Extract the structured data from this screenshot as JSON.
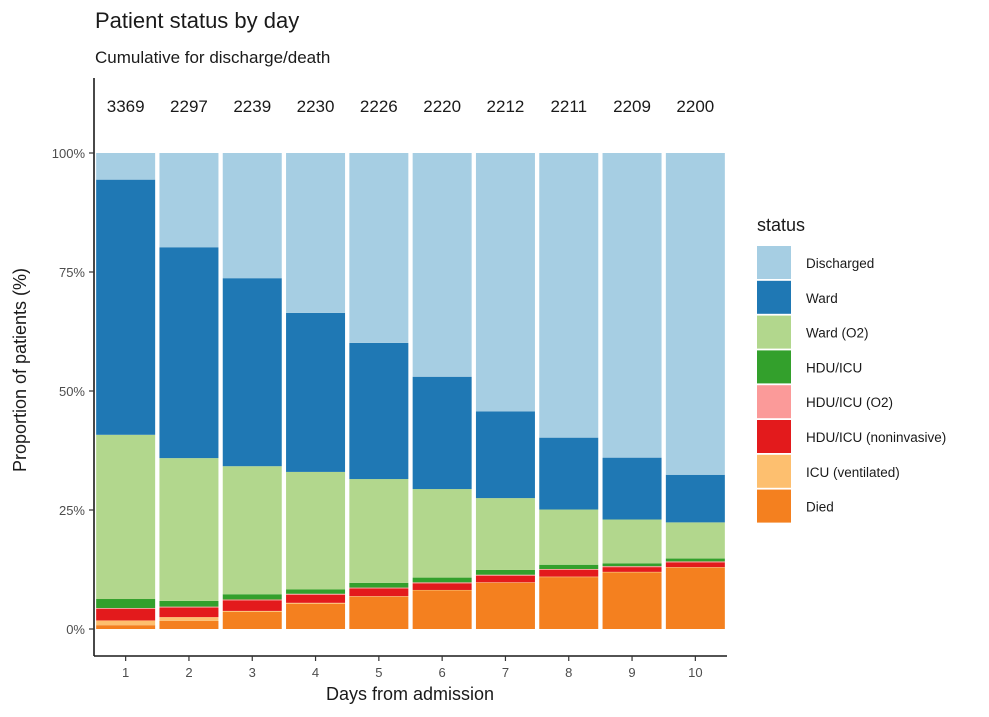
{
  "chart_data": {
    "type": "bar",
    "stacked": true,
    "normalized": true,
    "title": "Patient status by day",
    "subtitle": "Cumulative for discharge/death",
    "xlabel": "Days from admission",
    "ylabel": "Proportion of patients (%)",
    "categories": [
      "1",
      "2",
      "3",
      "4",
      "5",
      "6",
      "7",
      "8",
      "9",
      "10"
    ],
    "counts": [
      "3369",
      "2297",
      "2239",
      "2230",
      "2226",
      "2220",
      "2212",
      "2211",
      "2209",
      "2200"
    ],
    "yticks": [
      {
        "value": 0,
        "label": "0%"
      },
      {
        "value": 25,
        "label": "25%"
      },
      {
        "value": 50,
        "label": "50%"
      },
      {
        "value": 75,
        "label": "75%"
      },
      {
        "value": 100,
        "label": "100%"
      }
    ],
    "ylim": [
      0,
      100
    ],
    "legend_title": "status",
    "legend_position": "right",
    "series": [
      {
        "name": "Died",
        "color": "#f4801f",
        "values": [
          0.8,
          1.7,
          3.6,
          5.3,
          6.8,
          8.1,
          9.7,
          10.9,
          11.9,
          12.9
        ]
      },
      {
        "name": "ICU (ventilated)",
        "color": "#fdbf6f",
        "values": [
          1.0,
          0.8,
          0.2,
          0.2,
          0.1,
          0.1,
          0.1,
          0.1,
          0.1,
          0.1
        ]
      },
      {
        "name": "HDU/ICU (noninvasive)",
        "color": "#e31a1c",
        "values": [
          2.4,
          2.0,
          2.2,
          1.7,
          1.6,
          1.4,
          1.4,
          1.4,
          1.0,
          1.0
        ]
      },
      {
        "name": "HDU/ICU (O2)",
        "color": "#fb9a99",
        "values": [
          0.2,
          0.2,
          0.2,
          0.2,
          0.2,
          0.2,
          0.2,
          0.2,
          0.2,
          0.2
        ]
      },
      {
        "name": "HDU/ICU",
        "color": "#33a02c",
        "values": [
          1.9,
          1.2,
          1.1,
          0.9,
          1.0,
          1.0,
          1.0,
          0.9,
          0.6,
          0.6
        ]
      },
      {
        "name": "Ward (O2)",
        "color": "#b2d78d",
        "values": [
          34.5,
          30.0,
          26.9,
          24.7,
          21.8,
          18.6,
          15.1,
          11.6,
          9.2,
          7.6
        ]
      },
      {
        "name": "Ward",
        "color": "#1f78b4",
        "values": [
          53.6,
          44.3,
          39.5,
          33.4,
          28.6,
          23.6,
          18.2,
          15.1,
          13.0,
          10.0
        ]
      },
      {
        "name": "Discharged",
        "color": "#a6cee3",
        "values": [
          5.6,
          19.8,
          26.3,
          33.6,
          39.9,
          47.0,
          54.3,
          59.8,
          64.0,
          67.6
        ]
      }
    ],
    "legend_order": [
      "Discharged",
      "Ward",
      "Ward (O2)",
      "HDU/ICU",
      "HDU/ICU (O2)",
      "HDU/ICU (noninvasive)",
      "ICU (ventilated)",
      "Died"
    ],
    "grid": false
  }
}
